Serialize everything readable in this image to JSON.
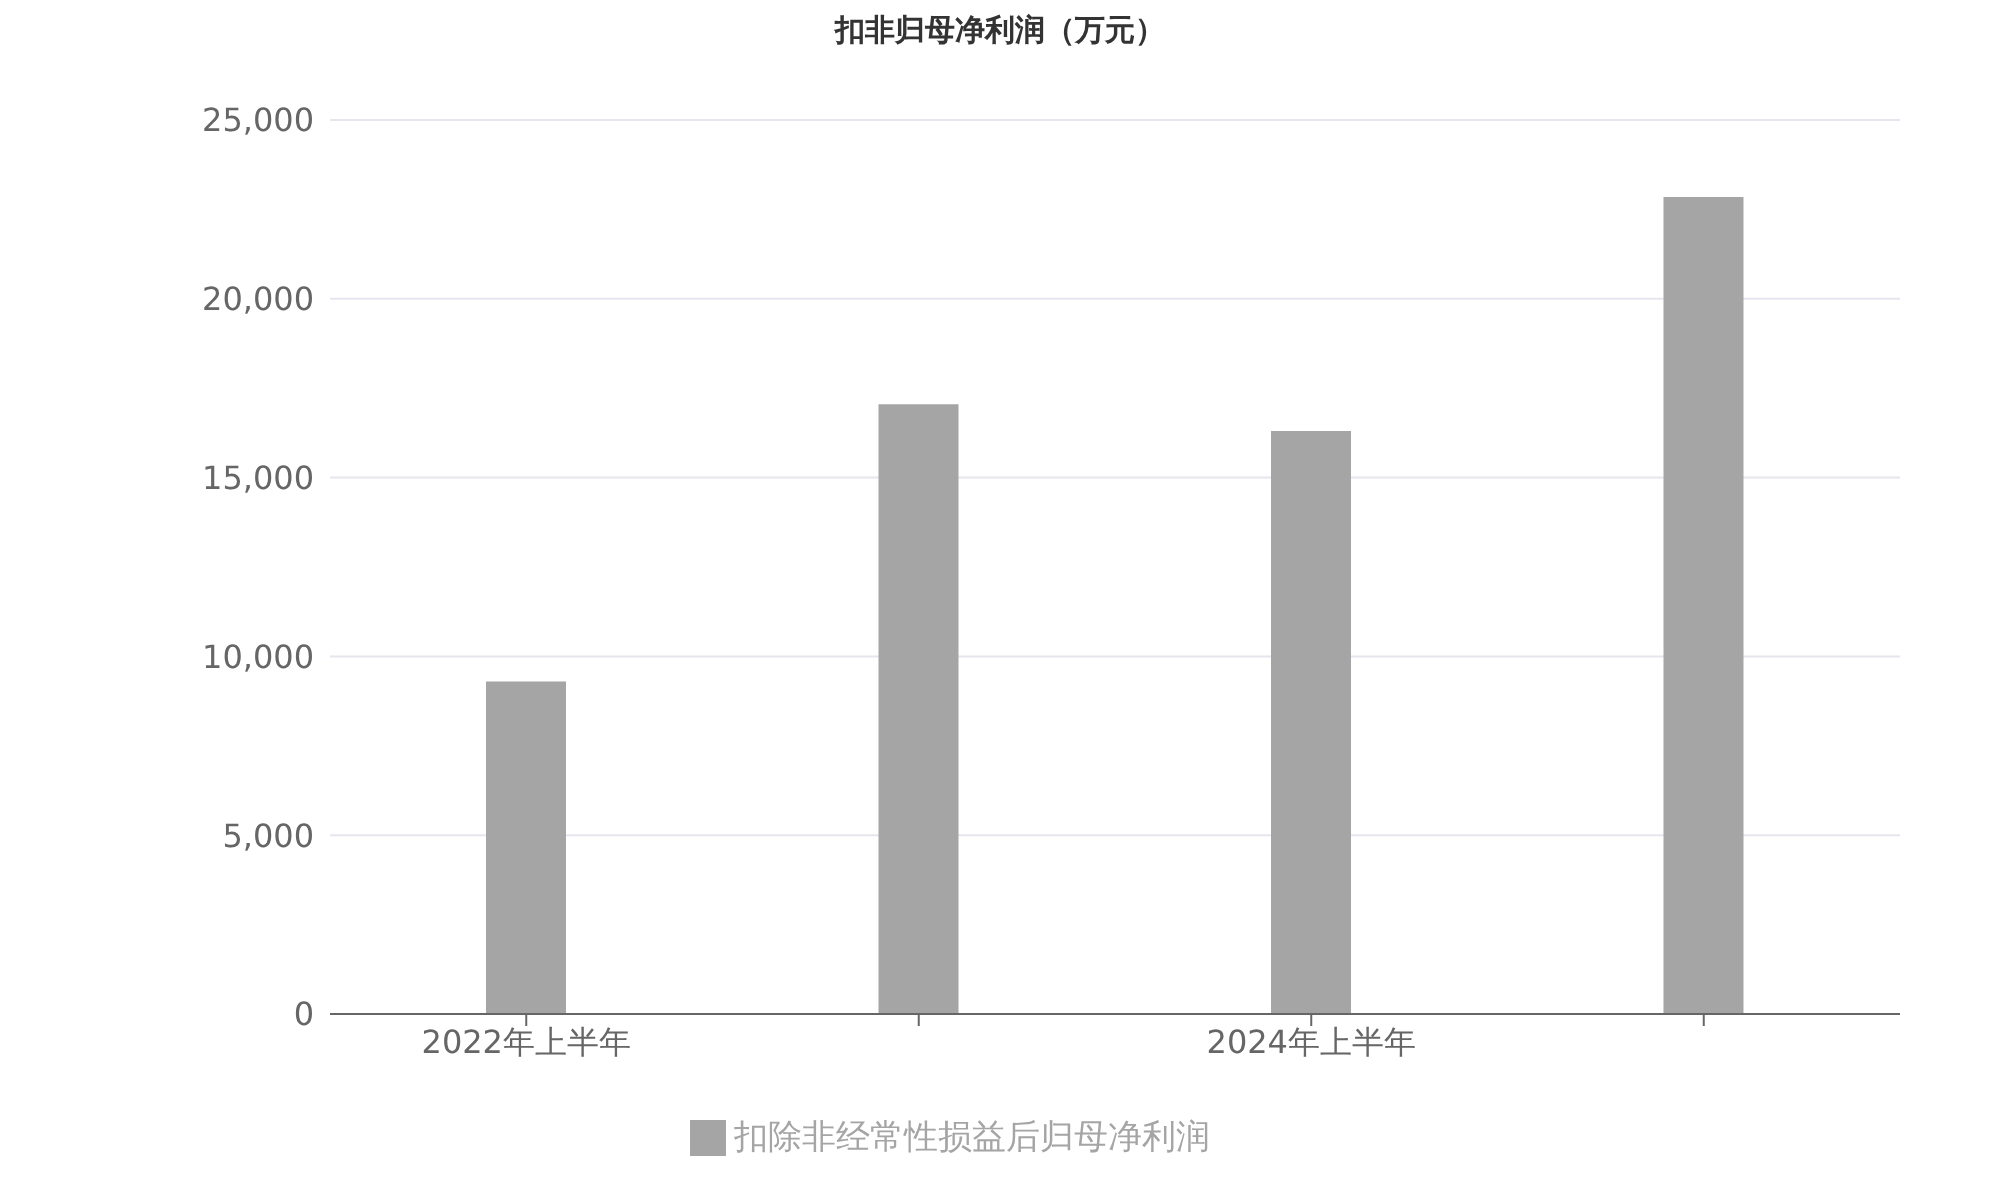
{
  "chart_data": {
    "type": "bar",
    "title": "扣非归母净利润（万元）",
    "categories": [
      "2022年上半年",
      null,
      "2024年上半年",
      null
    ],
    "series": [
      {
        "name": "扣除非经常性损益后归母净利润",
        "color": "#a5a5a5",
        "values": [
          9300,
          17050,
          16300,
          22850
        ]
      }
    ],
    "ylim": [
      0,
      25000
    ],
    "yticks": [
      {
        "value": 0,
        "label": "0"
      },
      {
        "value": 5000,
        "label": "5,000"
      },
      {
        "value": 10000,
        "label": "10,000"
      },
      {
        "value": 15000,
        "label": "15,000"
      },
      {
        "value": 20000,
        "label": "20,000"
      },
      {
        "value": 25000,
        "label": "25,000"
      }
    ],
    "grid": "y",
    "legend": "bottom"
  }
}
